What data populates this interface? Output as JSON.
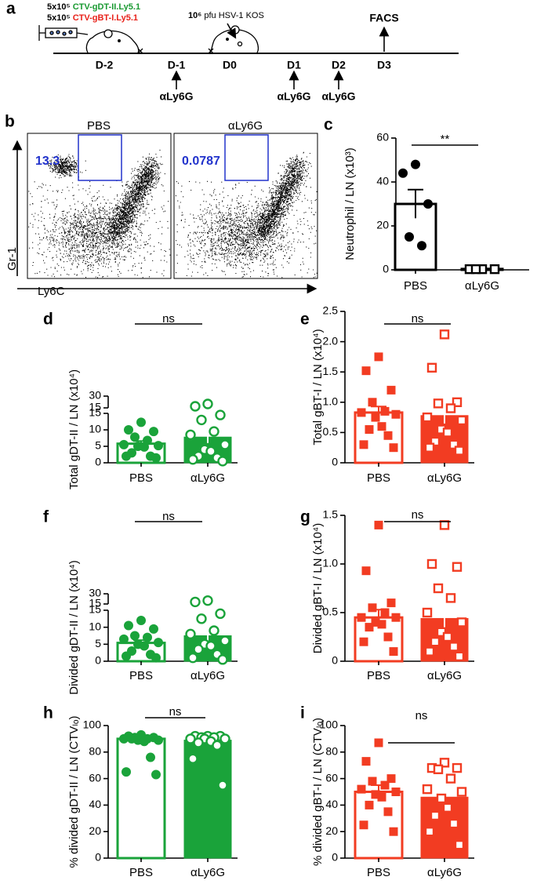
{
  "timeline": {
    "panel": "a",
    "injections": [
      {
        "dose": "5x10⁵",
        "cells": "CTV-gDT-II.Ly5.1"
      },
      {
        "dose": "5x10⁵",
        "cells": "CTV-gBT-I.Ly5.1"
      }
    ],
    "infection": {
      "dose": "10⁶",
      "text": "pfu HSV-1 KOS"
    },
    "readout": "FACS",
    "days": [
      "D-2",
      "D-1",
      "D0",
      "D1",
      "D2",
      "D3"
    ],
    "treatments": [
      "αLy6G",
      "αLy6G",
      "αLy6G"
    ]
  },
  "flow": {
    "panel": "b",
    "xlabel": "Ly6C",
    "ylabel": "Gr-1",
    "plots": [
      {
        "title": "PBS",
        "gate": 13.3
      },
      {
        "title": "αLy6G",
        "gate": 0.0787
      }
    ]
  },
  "chart_data": [
    {
      "type": "bar",
      "panel": "c",
      "ylabel": "Neutrophil / LN (x10³)",
      "categories": [
        "PBS",
        "αLy6G"
      ],
      "values": [
        30,
        0.4
      ],
      "errors": [
        6.5,
        0.2
      ],
      "points": [
        [
          48,
          44,
          30,
          15,
          11
        ],
        [
          0.3,
          0.3,
          0.3,
          0.3
        ]
      ],
      "color": "#000000",
      "bar_styles": [
        "open",
        "open"
      ],
      "point_styles": [
        "filled",
        "open"
      ],
      "markers": [
        "circle",
        "square"
      ],
      "ylim": [
        0,
        60
      ],
      "yticks": [
        0,
        20,
        40,
        60
      ],
      "annotation": "**"
    },
    {
      "type": "bar",
      "panel": "d",
      "ylabel": "Total gDT-II / LN (x10⁴)",
      "categories": [
        "PBS",
        "αLy6G"
      ],
      "values": [
        5.8,
        7.8
      ],
      "errors": [
        0.8,
        1.8
      ],
      "points": [
        [
          12.3,
          10,
          9.5,
          7.8,
          6.8,
          5.5,
          5.2,
          5,
          4.8,
          3,
          2,
          2,
          1.5
        ],
        [
          20,
          17,
          14.5,
          13,
          9.5,
          8.5,
          5.5,
          4,
          3.5,
          2,
          1.5,
          1,
          0.5
        ]
      ],
      "color": "#1aa33a",
      "bar_styles": [
        "open",
        "filled"
      ],
      "point_styles": [
        "filled",
        "open"
      ],
      "markers": [
        "circle",
        "circle"
      ],
      "ylim": [
        0,
        15
      ],
      "yticks": [
        0,
        5,
        10,
        15
      ],
      "ylim_upper": [
        15,
        30
      ],
      "yticks_upper": [
        15,
        30
      ],
      "annotation": "ns"
    },
    {
      "type": "bar",
      "panel": "e",
      "ylabel": "Total gBT-I / LN (x10⁴)",
      "categories": [
        "PBS",
        "αLy6G"
      ],
      "values": [
        0.83,
        0.78
      ],
      "errors": [
        0.1,
        0.13
      ],
      "points": [
        [
          1.75,
          1.52,
          1.2,
          1,
          0.85,
          0.83,
          0.8,
          0.75,
          0.6,
          0.55,
          0.45,
          0.3,
          0.25
        ],
        [
          2.12,
          1.57,
          1,
          0.98,
          0.9,
          0.75,
          0.7,
          0.55,
          0.5,
          0.35,
          0.3,
          0.25,
          0.2
        ]
      ],
      "color": "#f23c22",
      "bar_styles": [
        "open",
        "filled"
      ],
      "point_styles": [
        "filled",
        "open"
      ],
      "markers": [
        "square",
        "square"
      ],
      "ylim": [
        0,
        2.5
      ],
      "yticks": [
        0,
        0.5,
        {
          "value": 1,
          "label": "1.0"
        },
        1.5,
        {
          "value": 2,
          "label": "2.0"
        },
        2.5
      ],
      "annotation": "ns"
    },
    {
      "type": "bar",
      "panel": "f",
      "ylabel": "Divided gDT-II / LN (x10⁴)",
      "categories": [
        "PBS",
        "αLy6G"
      ],
      "values": [
        5.4,
        7.5
      ],
      "errors": [
        0.8,
        1.7
      ],
      "points": [
        [
          12,
          10.5,
          9.5,
          7.5,
          7,
          6.5,
          5.5,
          5,
          4.5,
          3,
          2,
          1.5,
          1
        ],
        [
          20,
          18,
          14,
          12.5,
          9,
          8,
          6,
          5,
          4.5,
          3.5,
          2,
          1,
          0.5
        ]
      ],
      "color": "#1aa33a",
      "bar_styles": [
        "open",
        "filled"
      ],
      "point_styles": [
        "filled",
        "open"
      ],
      "markers": [
        "circle",
        "circle"
      ],
      "ylim": [
        0,
        15
      ],
      "yticks": [
        0,
        5,
        10,
        15
      ],
      "ylim_upper": [
        15,
        30
      ],
      "yticks_upper": [
        15,
        30
      ],
      "annotation": "ns"
    },
    {
      "type": "bar",
      "panel": "g",
      "ylabel": "Divided gBT-I / LN (x10⁴)",
      "categories": [
        "PBS",
        "αLy6G"
      ],
      "values": [
        0.45,
        0.44
      ],
      "errors": [
        0.08,
        0.1
      ],
      "points": [
        [
          1.4,
          0.93,
          0.6,
          0.55,
          0.5,
          0.45,
          0.45,
          0.4,
          0.38,
          0.35,
          0.25,
          0.2,
          0.1
        ],
        [
          1.4,
          1,
          0.97,
          0.75,
          0.65,
          0.5,
          0.4,
          0.3,
          0.25,
          0.2,
          0.15,
          0.1,
          0.05
        ]
      ],
      "color": "#f23c22",
      "bar_styles": [
        "open",
        "filled"
      ],
      "point_styles": [
        "filled",
        "open"
      ],
      "markers": [
        "square",
        "square"
      ],
      "ylim": [
        0,
        1.5
      ],
      "yticks": [
        0,
        0.5,
        {
          "value": 1,
          "label": "1.0"
        },
        1.5
      ],
      "annotation": "ns"
    },
    {
      "type": "bar",
      "panel": "h",
      "ylabel": "% divided gDT-II / LN (CTVₗₒ)",
      "categories": [
        "PBS",
        "αLy6G"
      ],
      "values": [
        90,
        89
      ],
      "errors": [
        2.5,
        3
      ],
      "points": [
        [
          93,
          92,
          91,
          91,
          90,
          90,
          89,
          89,
          88,
          90,
          76,
          65,
          63
        ],
        [
          92,
          92,
          92,
          91,
          91,
          90,
          90,
          90,
          88,
          87,
          85,
          75,
          55
        ]
      ],
      "color": "#1aa33a",
      "bar_styles": [
        "open",
        "filled"
      ],
      "point_styles": [
        "filled",
        "open"
      ],
      "markers": [
        "circle",
        "circle"
      ],
      "ylim": [
        0,
        100
      ],
      "yticks": [
        0,
        20,
        40,
        60,
        80,
        100
      ],
      "annotation": "ns"
    },
    {
      "type": "bar",
      "panel": "i",
      "ylabel": "% divided gBT-I / LN (CTVₗₒ)",
      "categories": [
        "PBS",
        "αLy6G"
      ],
      "values": [
        50,
        46
      ],
      "errors": [
        5,
        5
      ],
      "points": [
        [
          87,
          73,
          60,
          58,
          55,
          52,
          50,
          48,
          46,
          40,
          35,
          25,
          20
        ],
        [
          72,
          68,
          68,
          67,
          60,
          52,
          50,
          45,
          38,
          32,
          26,
          20,
          10
        ]
      ],
      "color": "#f23c22",
      "bar_styles": [
        "open",
        "filled"
      ],
      "point_styles": [
        "filled",
        "open"
      ],
      "markers": [
        "square",
        "square"
      ],
      "ylim": [
        0,
        100
      ],
      "yticks": [
        0,
        20,
        40,
        60,
        80,
        100
      ],
      "annotation": "ns"
    }
  ]
}
